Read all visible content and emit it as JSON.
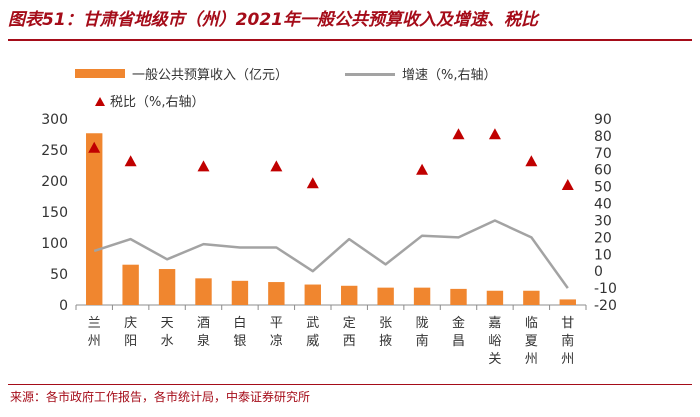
{
  "title": "图表51：甘肃省地级市（州）2021年一般公共预算收入及增速、税比",
  "legend": {
    "bar": "一般公共预算收入（亿元）",
    "line": "增速（%,右轴）",
    "marker": "税比（%,右轴）"
  },
  "source": "来源：各市政府工作报告，各市统计局，中泰证券研究所",
  "colors": {
    "bar": "#f0862f",
    "line": "#a3a3a3",
    "marker": "#c00000",
    "title": "#a50c19"
  },
  "chart_data": {
    "type": "bar",
    "categories": [
      "兰州",
      "庆阳",
      "天水",
      "酒泉",
      "白银",
      "平凉",
      "武威",
      "定西",
      "张掖",
      "陇南",
      "金昌",
      "嘉峪关",
      "临夏州",
      "甘南州"
    ],
    "series": [
      {
        "name": "一般公共预算收入（亿元）",
        "type": "bar",
        "axis": "left",
        "values": [
          277,
          65,
          58,
          43,
          39,
          37,
          33,
          31,
          28,
          28,
          26,
          23,
          23,
          9
        ]
      },
      {
        "name": "增速（%,右轴）",
        "type": "line",
        "axis": "right",
        "values": [
          12,
          19,
          7,
          16,
          14,
          14,
          0,
          19,
          4,
          21,
          20,
          30,
          20,
          -10
        ]
      },
      {
        "name": "税比（%,右轴）",
        "type": "scatter",
        "axis": "right",
        "values": [
          73,
          65,
          null,
          62,
          null,
          62,
          52,
          null,
          null,
          60,
          81,
          81,
          65,
          51
        ]
      }
    ],
    "y_left": {
      "min": 0,
      "max": 300,
      "ticks": [
        0,
        50,
        100,
        150,
        200,
        250,
        300
      ]
    },
    "y_right": {
      "min": -20,
      "max": 90,
      "ticks": [
        -20,
        -10,
        0,
        10,
        20,
        30,
        40,
        50,
        60,
        70,
        80,
        90
      ]
    },
    "grid": false,
    "legend_position": "top-left"
  }
}
